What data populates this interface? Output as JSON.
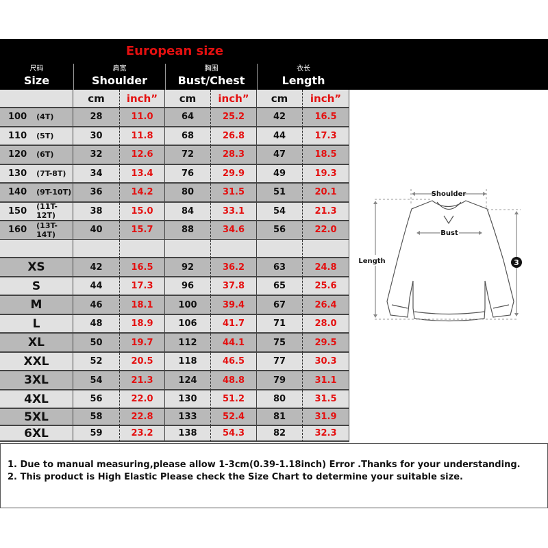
{
  "title": "European size",
  "headers": [
    {
      "zh": "尺码",
      "en": "Size"
    },
    {
      "zh": "肩宽",
      "en": "Shoulder"
    },
    {
      "zh": "胸围",
      "en": "Bust/Chest"
    },
    {
      "zh": "衣长",
      "en": "Length"
    }
  ],
  "units": {
    "cm": "cm",
    "inch": "inch”"
  },
  "child_rows": [
    {
      "size": "100",
      "age": "(4T)",
      "values": [
        "28",
        "11.0",
        "64",
        "25.2",
        "42",
        "16.5"
      ]
    },
    {
      "size": "110",
      "age": "(5T)",
      "values": [
        "30",
        "11.8",
        "68",
        "26.8",
        "44",
        "17.3"
      ]
    },
    {
      "size": "120",
      "age": "(6T)",
      "values": [
        "32",
        "12.6",
        "72",
        "28.3",
        "47",
        "18.5"
      ]
    },
    {
      "size": "130",
      "age": "(7T-8T)",
      "values": [
        "34",
        "13.4",
        "76",
        "29.9",
        "49",
        "19.3"
      ]
    },
    {
      "size": "140",
      "age": "(9T-10T)",
      "values": [
        "36",
        "14.2",
        "80",
        "31.5",
        "51",
        "20.1"
      ]
    },
    {
      "size": "150",
      "age": "(11T-12T)",
      "values": [
        "38",
        "15.0",
        "84",
        "33.1",
        "54",
        "21.3"
      ]
    },
    {
      "size": "160",
      "age": "(13T-14T)",
      "values": [
        "40",
        "15.7",
        "88",
        "34.6",
        "56",
        "22.0"
      ]
    }
  ],
  "adult_rows": [
    {
      "size": "XS",
      "values": [
        "42",
        "16.5",
        "92",
        "36.2",
        "63",
        "24.8"
      ]
    },
    {
      "size": "S",
      "values": [
        "44",
        "17.3",
        "96",
        "37.8",
        "65",
        "25.6"
      ]
    },
    {
      "size": "M",
      "values": [
        "46",
        "18.1",
        "100",
        "39.4",
        "67",
        "26.4"
      ]
    },
    {
      "size": "L",
      "values": [
        "48",
        "18.9",
        "106",
        "41.7",
        "71",
        "28.0"
      ]
    },
    {
      "size": "XL",
      "values": [
        "50",
        "19.7",
        "112",
        "44.1",
        "75",
        "29.5"
      ]
    },
    {
      "size": "XXL",
      "values": [
        "52",
        "20.5",
        "118",
        "46.5",
        "77",
        "30.3"
      ]
    },
    {
      "size": "3XL",
      "values": [
        "54",
        "21.3",
        "124",
        "48.8",
        "79",
        "31.1"
      ]
    },
    {
      "size": "4XL",
      "values": [
        "56",
        "22.0",
        "130",
        "51.2",
        "80",
        "31.5"
      ]
    },
    {
      "size": "5XL",
      "values": [
        "58",
        "22.8",
        "133",
        "52.4",
        "81",
        "31.9"
      ]
    },
    {
      "size": "6XL",
      "values": [
        "59",
        "23.2",
        "138",
        "54.3",
        "82",
        "32.3"
      ]
    }
  ],
  "diagram": {
    "shoulder": "Shoulder",
    "bust": "Bust",
    "length": "Length",
    "marker": "3"
  },
  "notes": [
    "1. Due to manual measuring,please allow 1-3cm(0.39-1.18inch) Error .Thanks for your understanding.",
    "2. This product is High Elastic Please check the Size Chart to determine your suitable size."
  ],
  "colors": {
    "accent": "#e41010",
    "row_dark": "#b9b9b9",
    "row_light": "#e1e1e1",
    "header": "#000000"
  }
}
